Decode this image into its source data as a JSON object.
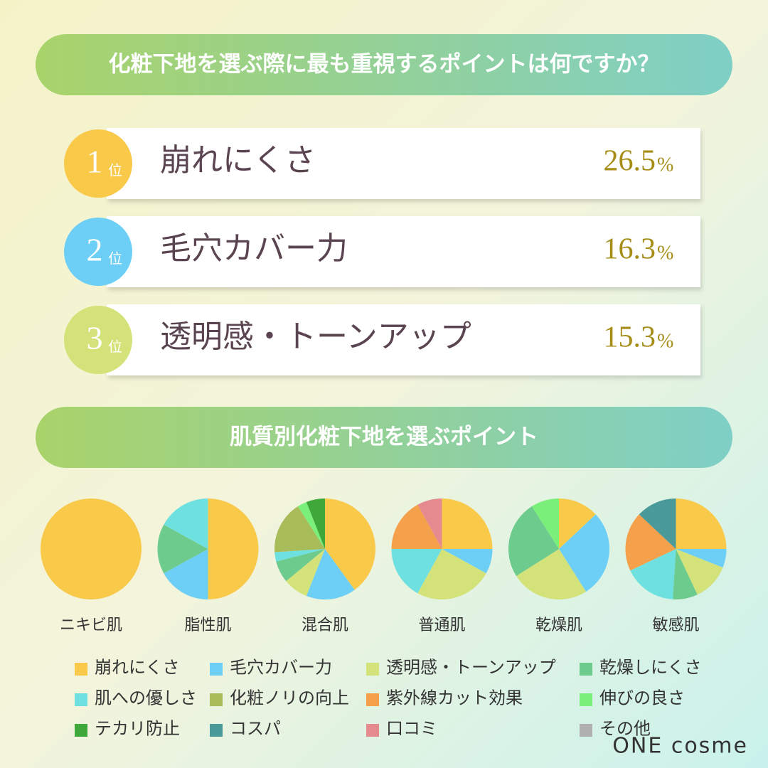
{
  "title": "化粧下地を選ぶ際に最も重視するポイントは何ですか？",
  "ranking": [
    {
      "rank": 1,
      "suffix": "位",
      "label": "崩れにくさ",
      "value": 26.5,
      "unit": "%",
      "color": "#F9C94A"
    },
    {
      "rank": 2,
      "suffix": "位",
      "label": "毛穴カバー力",
      "value": 16.3,
      "unit": "%",
      "color": "#6DCFF6"
    },
    {
      "rank": 3,
      "suffix": "位",
      "label": "透明感・トーンアップ",
      "value": 15.3,
      "unit": "%",
      "color": "#D4E27A"
    }
  ],
  "chart_heading": "肌質別化粧下地を選ぶポイント",
  "chart_data": {
    "type": "pie",
    "legend": {
      "names": [
        "崩れにくさ",
        "毛穴カバー力",
        "透明感・トーンアップ",
        "乾燥しにくさ",
        "肌への優しさ",
        "化粧ノリの向上",
        "紫外線カット効果",
        "伸びの良さ",
        "テカリ防止",
        "コスパ",
        "口コミ",
        "その他"
      ],
      "colors": [
        "#F9C94A",
        "#6DCFF6",
        "#D4E27A",
        "#6DCB8E",
        "#6EE0E0",
        "#A9BC5A",
        "#F5A04A",
        "#7AF07A",
        "#3FA83A",
        "#4A9A9A",
        "#E58A8E",
        "#B0B0B0"
      ]
    },
    "pies": [
      {
        "name": "ニキビ肌",
        "values": [
          100,
          0,
          0,
          0,
          0,
          0,
          0,
          0,
          0,
          0,
          0,
          0
        ]
      },
      {
        "name": "脂性肌",
        "values": [
          50,
          17,
          0,
          16,
          17,
          0,
          0,
          0,
          0,
          0,
          0,
          0
        ]
      },
      {
        "name": "混合肌",
        "values": [
          40,
          16,
          8,
          7,
          3,
          17,
          0,
          3,
          6,
          0,
          0,
          0
        ]
      },
      {
        "name": "普通肌",
        "values": [
          25,
          8,
          25,
          0,
          17,
          0,
          17,
          0,
          0,
          0,
          8,
          0
        ]
      },
      {
        "name": "乾燥肌",
        "values": [
          13,
          28,
          25,
          25,
          0,
          0,
          0,
          9,
          0,
          0,
          0,
          0
        ]
      },
      {
        "name": "敏感肌",
        "values": [
          25,
          6,
          12,
          8,
          17,
          0,
          19,
          0,
          0,
          13,
          0,
          0
        ]
      }
    ]
  },
  "brand": "ONE cosme"
}
